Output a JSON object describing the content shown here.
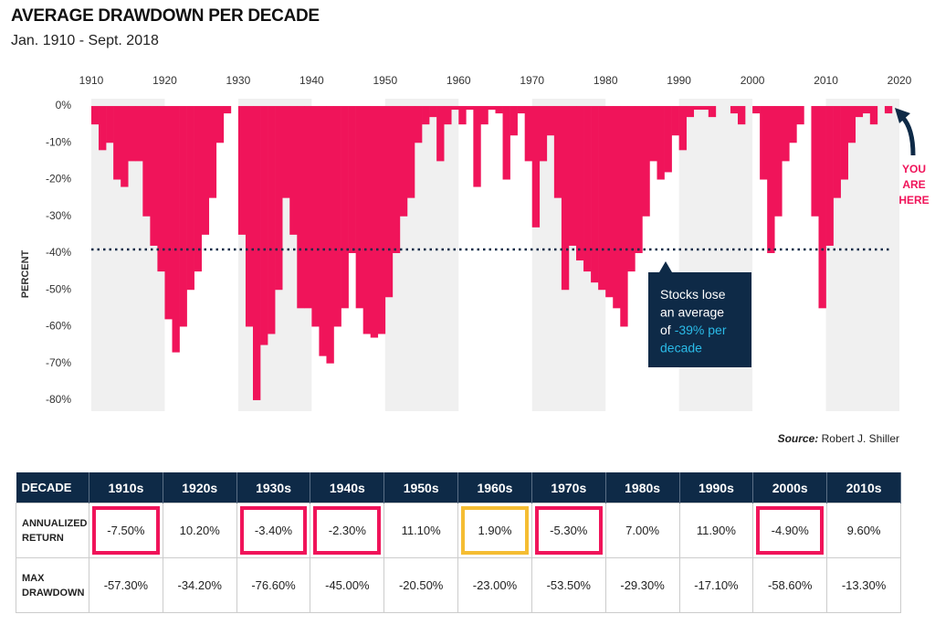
{
  "chart_data": {
    "type": "drawdown",
    "title": "AVERAGE DRAWDOWN PER DECADE",
    "subtitle": "Jan. 1910 - Sept. 2018",
    "y_label": "PERCENT",
    "source_label": "Source:",
    "source": "Robert J. Shiller",
    "color": "#f0145a",
    "band_color": "#f0f0f0",
    "xlim": [
      1910,
      2020
    ],
    "xticks": [
      1910,
      1920,
      1930,
      1940,
      1950,
      1960,
      1970,
      1980,
      1990,
      2000,
      2010,
      2020
    ],
    "ylim": [
      -83,
      2
    ],
    "yticks": [
      {
        "value": 0,
        "label": "0%"
      },
      {
        "value": -10,
        "label": "-10%"
      },
      {
        "value": -20,
        "label": "-20%"
      },
      {
        "value": -30,
        "label": "-30%"
      },
      {
        "value": -40,
        "label": "-40%"
      },
      {
        "value": -50,
        "label": "-50%"
      },
      {
        "value": -60,
        "label": "-60%"
      },
      {
        "value": -70,
        "label": "-70%"
      },
      {
        "value": -80,
        "label": "-80%"
      }
    ],
    "x": [
      1910,
      1911,
      1912,
      1913,
      1914,
      1915,
      1916,
      1917,
      1918,
      1919,
      1920,
      1921,
      1922,
      1923,
      1924,
      1925,
      1926,
      1927,
      1928,
      1929,
      1930,
      1931,
      1932,
      1933,
      1934,
      1935,
      1936,
      1937,
      1938,
      1939,
      1940,
      1941,
      1942,
      1943,
      1944,
      1945,
      1946,
      1947,
      1948,
      1949,
      1950,
      1951,
      1952,
      1953,
      1954,
      1955,
      1956,
      1957,
      1958,
      1959,
      1960,
      1961,
      1962,
      1963,
      1964,
      1965,
      1966,
      1967,
      1968,
      1969,
      1970,
      1971,
      1972,
      1973,
      1974,
      1975,
      1976,
      1977,
      1978,
      1979,
      1980,
      1981,
      1982,
      1983,
      1984,
      1985,
      1986,
      1987,
      1988,
      1989,
      1990,
      1991,
      1992,
      1993,
      1994,
      1995,
      1996,
      1997,
      1998,
      1999,
      2000,
      2001,
      2002,
      2003,
      2004,
      2005,
      2006,
      2007,
      2008,
      2009,
      2010,
      2011,
      2012,
      2013,
      2014,
      2015,
      2016,
      2017,
      2018
    ],
    "values": [
      -5,
      -12,
      -10,
      -20,
      -22,
      -15,
      -15,
      -30,
      -38,
      -45,
      -58,
      -67,
      -60,
      -50,
      -45,
      -35,
      -25,
      -10,
      -2,
      0,
      -35,
      -60,
      -80,
      -65,
      -62,
      -50,
      -25,
      -35,
      -55,
      -55,
      -60,
      -68,
      -70,
      -60,
      -55,
      -40,
      -55,
      -62,
      -63,
      -62,
      -52,
      -40,
      -30,
      -25,
      -10,
      -5,
      -3,
      -15,
      -5,
      -1,
      -5,
      -1,
      -22,
      -5,
      -1,
      -2,
      -20,
      -8,
      -2,
      -15,
      -33,
      -15,
      -8,
      -25,
      -50,
      -38,
      -42,
      -45,
      -48,
      -50,
      -52,
      -55,
      -60,
      -45,
      -40,
      -30,
      -15,
      -20,
      -18,
      -8,
      -12,
      -3,
      -1,
      -1,
      -3,
      0,
      0,
      -2,
      -5,
      0,
      -2,
      -20,
      -40,
      -30,
      -15,
      -10,
      -5,
      0,
      -30,
      -55,
      -38,
      -25,
      -20,
      -10,
      -3,
      -2,
      -5,
      0,
      -2
    ],
    "average": -39,
    "annotation": {
      "lines": [
        "Stocks lose",
        "an average"
      ],
      "prefix": "of",
      "highlight": [
        "-39% per",
        "decade"
      ]
    },
    "marker": [
      "YOU",
      "ARE",
      "HERE"
    ]
  },
  "table": {
    "header": [
      "DECADE",
      "1910s",
      "1920s",
      "1930s",
      "1940s",
      "1950s",
      "1960s",
      "1970s",
      "1980s",
      "1990s",
      "2000s",
      "2010s"
    ],
    "rows": [
      [
        "ANNUALIZED RETURN",
        "-7.50%",
        "10.20%",
        "-3.40%",
        "-2.30%",
        "11.10%",
        "1.90%",
        "-5.30%",
        "7.00%",
        "11.90%",
        "-4.90%",
        "9.60%"
      ],
      [
        "MAX DRAWDOWN",
        "-57.30%",
        "-34.20%",
        "-76.60%",
        "-45.00%",
        "-20.50%",
        "-23.00%",
        "-53.50%",
        "-29.30%",
        "-17.10%",
        "-58.60%",
        "-13.30%"
      ]
    ]
  }
}
